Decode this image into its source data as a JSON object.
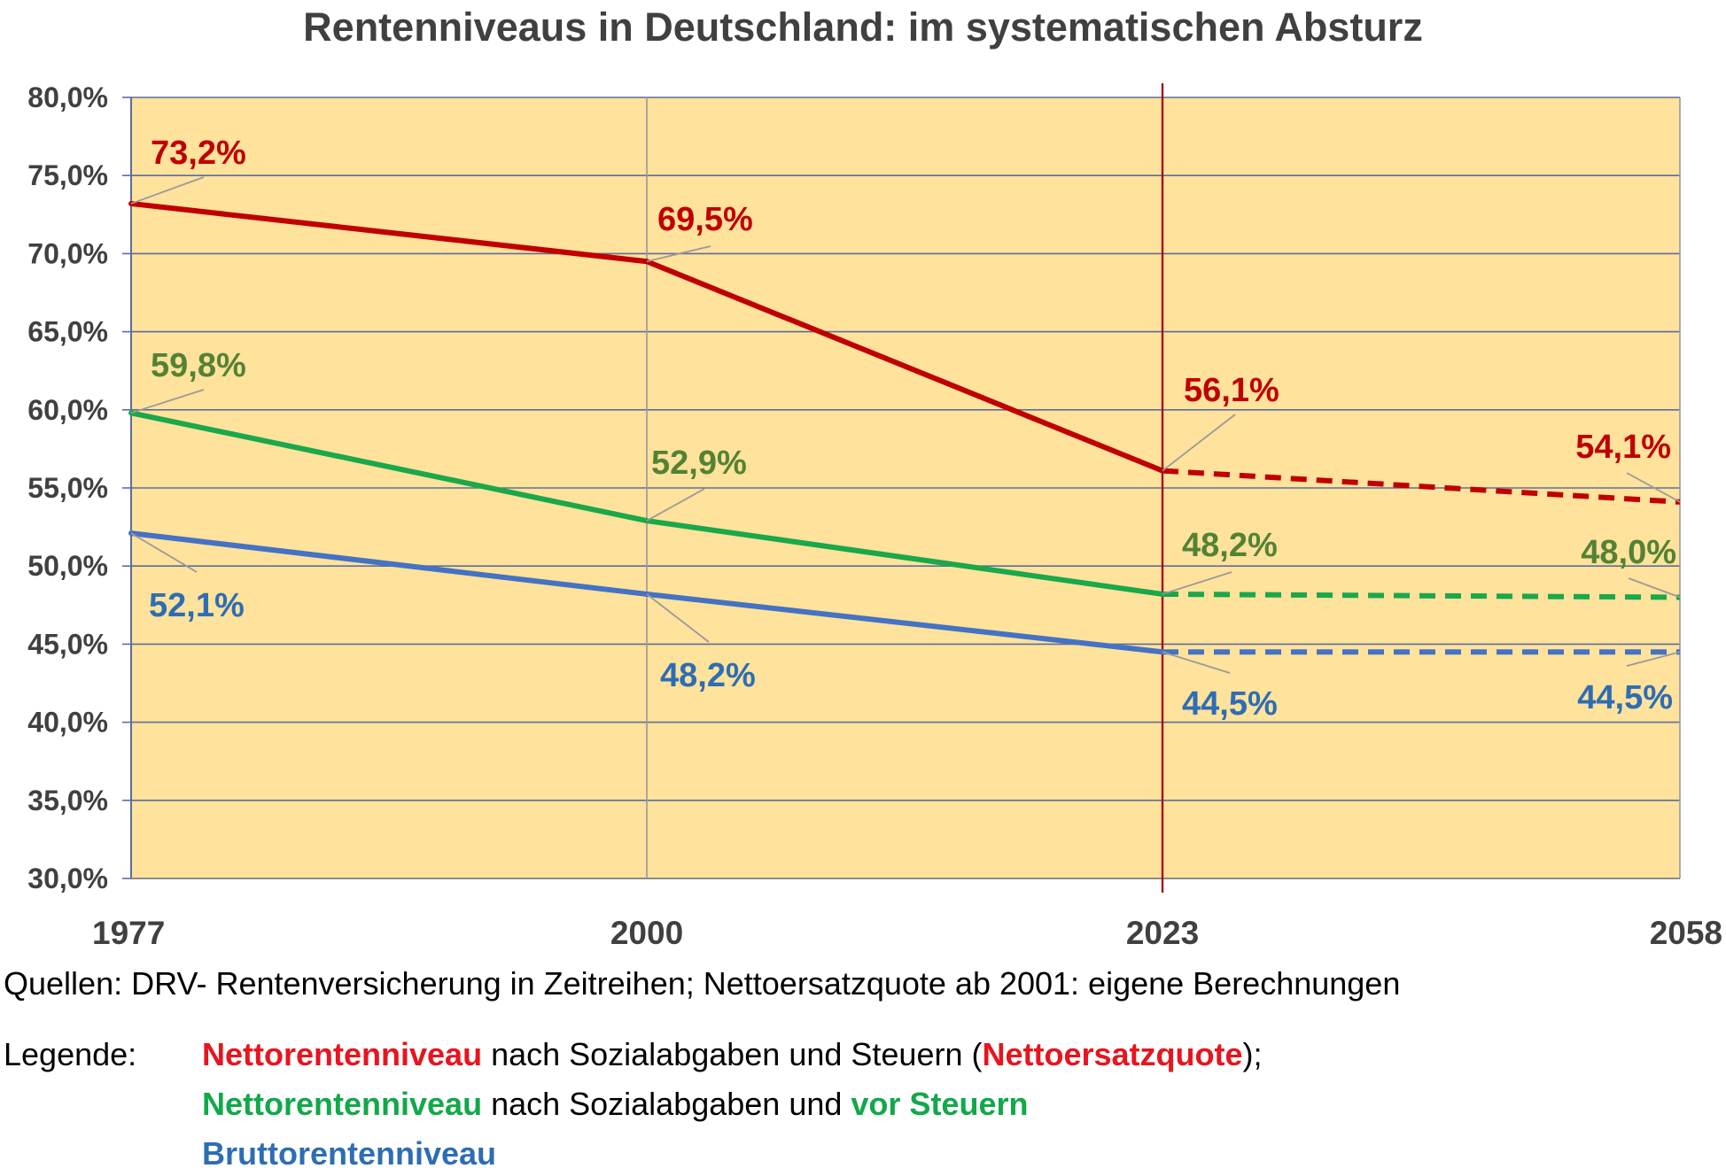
{
  "chart_data": {
    "type": "line",
    "title": "Rentenniveaus in Deutschland:  im systematischen Absturz",
    "x": [
      1977,
      2000,
      2023,
      2058
    ],
    "x_tick_labels": [
      "1977",
      "2000",
      "2023",
      "2058"
    ],
    "ylim": [
      30,
      80
    ],
    "y_ticks": [
      30,
      35,
      40,
      45,
      50,
      55,
      60,
      65,
      70,
      75,
      80
    ],
    "y_tick_labels": [
      "30,0%",
      "35,0%",
      "40,0%",
      "45,0%",
      "50,0%",
      "55,0%",
      "60,0%",
      "65,0%",
      "70,0%",
      "75,0%",
      "80,0%"
    ],
    "grid": true,
    "marker_year": 2023,
    "projection_from": 2023,
    "colors": {
      "plot_background": "#ffe29b",
      "grid": "#5a6e9c",
      "marker_line": "#a50f15"
    },
    "series": [
      {
        "key": "netto_nach_steuern",
        "values": [
          73.2,
          69.5,
          56.1,
          54.1
        ],
        "labels": [
          "73,2%",
          "69,5%",
          "56,1%",
          "54,1%"
        ],
        "line_color": "#c00000",
        "label_color": "#c00000"
      },
      {
        "key": "netto_vor_steuern",
        "values": [
          59.8,
          52.9,
          48.2,
          48.0
        ],
        "labels": [
          "59,8%",
          "52,9%",
          "48,2%",
          "48,0%"
        ],
        "line_color": "#1aa84b",
        "label_color": "#548235"
      },
      {
        "key": "brutto",
        "values": [
          52.1,
          48.2,
          44.5,
          44.5
        ],
        "labels": [
          "52,1%",
          "48,2%",
          "44,5%",
          "44,5%"
        ],
        "line_color": "#4472c4",
        "label_color": "#2e6db4"
      }
    ]
  },
  "source": "Quellen: DRV- Rentenversicherung in Zeitreihen; Nettoersatzquote ab 2001: eigene Berechnungen",
  "legend": {
    "heading": "Legende:",
    "row1": {
      "a": "Nettorentenniveau",
      "b": " nach Sozialabgaben und Steuern (",
      "c": "Nettoersatzquote",
      "d": ");"
    },
    "row2": {
      "a": "Nettorentenniveau",
      "b": " nach Sozialabgaben und ",
      "c": "vor Steuern"
    },
    "row3": {
      "a": "Bruttorentenniveau"
    },
    "colors": {
      "red": "#e8141e",
      "green": "#12a84a",
      "blue": "#2e6db4"
    }
  }
}
